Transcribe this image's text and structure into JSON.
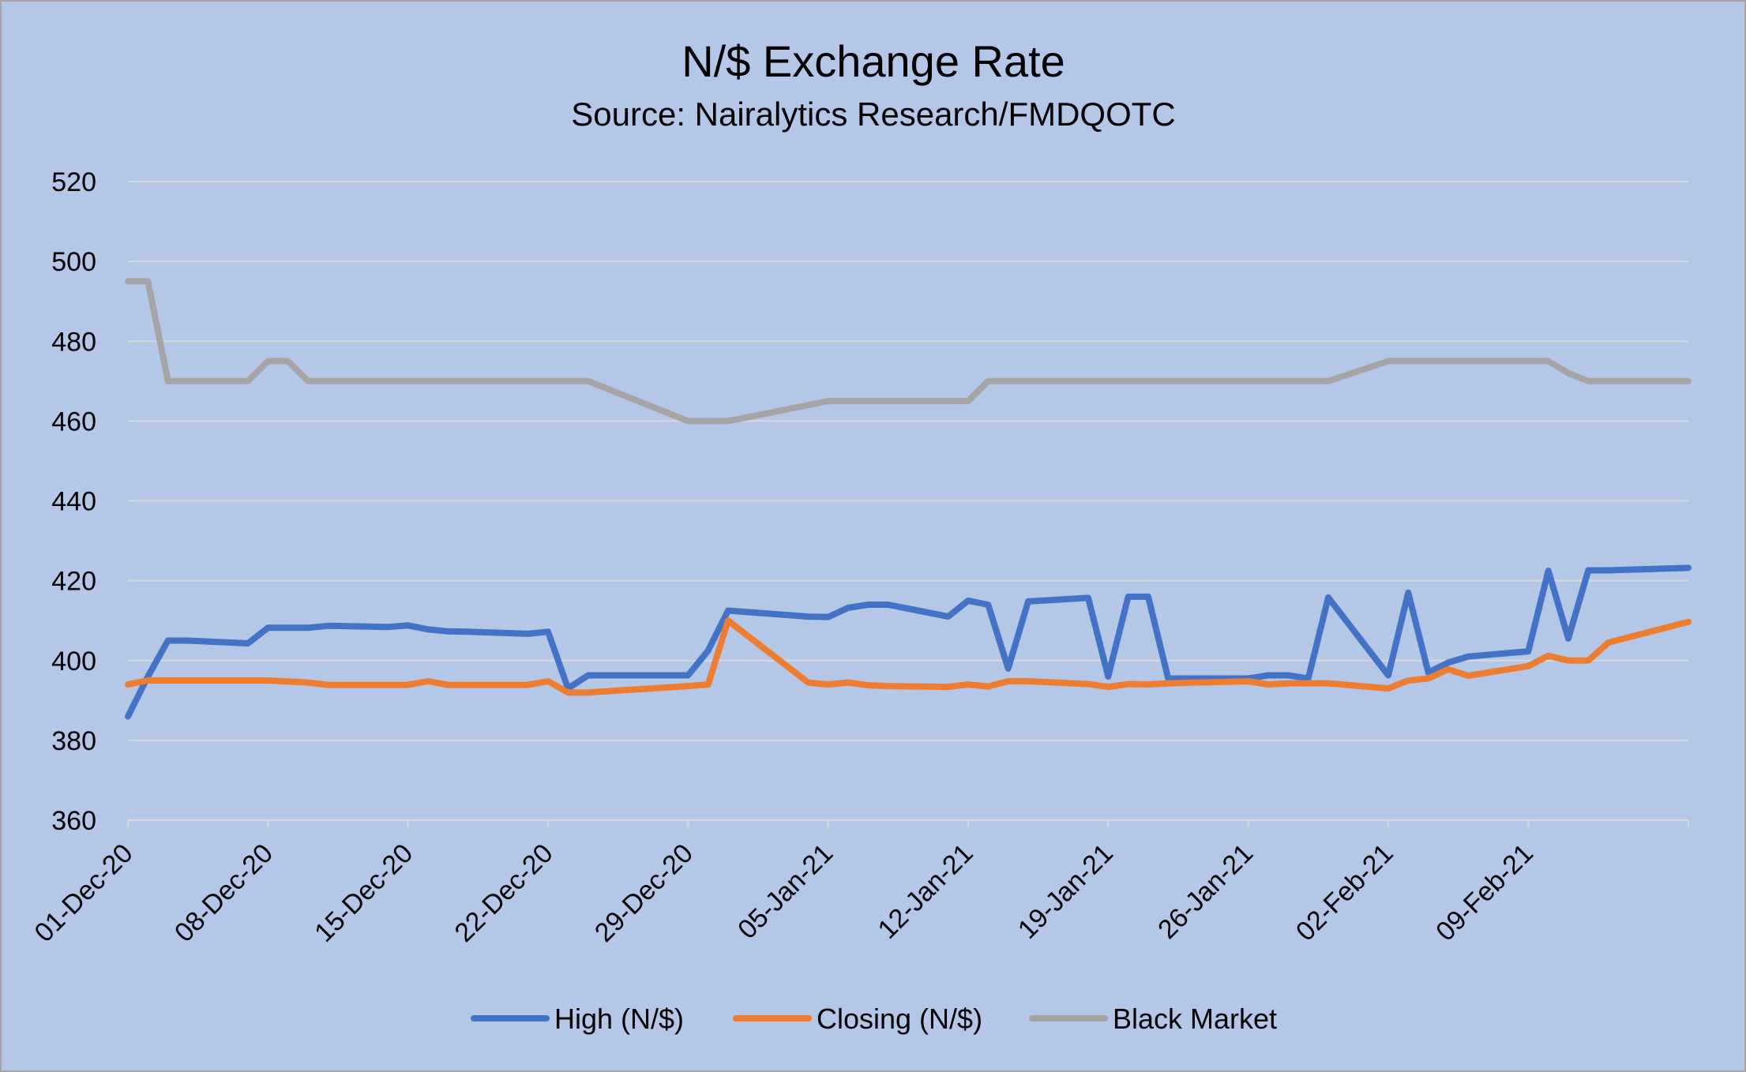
{
  "chart_data": {
    "type": "line",
    "title": "N/$ Exchange Rate",
    "subtitle": "Source: Nairalytics Research/FMDQOTC",
    "xlabel": "",
    "ylabel": "",
    "ylim": [
      360,
      520
    ],
    "yticks": [
      360,
      380,
      400,
      420,
      440,
      460,
      480,
      500,
      520
    ],
    "xlim": [
      "01-Dec-20",
      "17-Feb-21"
    ],
    "xticks": [
      "01-Dec-20",
      "08-Dec-20",
      "15-Dec-20",
      "22-Dec-20",
      "29-Dec-20",
      "05-Jan-21",
      "12-Jan-21",
      "19-Jan-21",
      "26-Jan-21",
      "02-Feb-21",
      "09-Feb-21"
    ],
    "grid": true,
    "legend_position": "bottom",
    "series": [
      {
        "name": "High (N/$)",
        "color": "#4472c4",
        "points": [
          [
            "01-Dec-20",
            386
          ],
          [
            "02-Dec-20",
            396
          ],
          [
            "03-Dec-20",
            405
          ],
          [
            "04-Dec-20",
            405
          ],
          [
            "07-Dec-20",
            404.3
          ],
          [
            "08-Dec-20",
            408.2
          ],
          [
            "09-Dec-20",
            408.2
          ],
          [
            "10-Dec-20",
            408.2
          ],
          [
            "11-Dec-20",
            408.7
          ],
          [
            "14-Dec-20",
            408.4
          ],
          [
            "15-Dec-20",
            408.8
          ],
          [
            "16-Dec-20",
            407.8
          ],
          [
            "17-Dec-20",
            407.3
          ],
          [
            "18-Dec-20",
            407.2
          ],
          [
            "21-Dec-20",
            406.7
          ],
          [
            "22-Dec-20",
            407.2
          ],
          [
            "23-Dec-20",
            393
          ],
          [
            "24-Dec-20",
            396.3
          ],
          [
            "29-Dec-20",
            396.3
          ],
          [
            "30-Dec-20",
            402.5
          ],
          [
            "31-Dec-20",
            412.5
          ],
          [
            "04-Jan-21",
            411
          ],
          [
            "05-Jan-21",
            410.9
          ],
          [
            "06-Jan-21",
            413.2
          ],
          [
            "07-Jan-21",
            414
          ],
          [
            "08-Jan-21",
            414
          ],
          [
            "11-Jan-21",
            411
          ],
          [
            "12-Jan-21",
            415
          ],
          [
            "13-Jan-21",
            414
          ],
          [
            "14-Jan-21",
            398
          ],
          [
            "15-Jan-21",
            414.8
          ],
          [
            "18-Jan-21",
            415.7
          ],
          [
            "19-Jan-21",
            396
          ],
          [
            "20-Jan-21",
            416
          ],
          [
            "21-Jan-21",
            416
          ],
          [
            "22-Jan-21",
            395.5
          ],
          [
            "26-Jan-21",
            395.5
          ],
          [
            "27-Jan-21",
            396.3
          ],
          [
            "28-Jan-21",
            396.3
          ],
          [
            "29-Jan-21",
            395.5
          ],
          [
            "30-Jan-21",
            415.8
          ],
          [
            "02-Feb-21",
            396.3
          ],
          [
            "03-Feb-21",
            417
          ],
          [
            "04-Feb-21",
            397
          ],
          [
            "05-Feb-21",
            399.5
          ],
          [
            "06-Feb-21",
            401
          ],
          [
            "09-Feb-21",
            402.3
          ],
          [
            "10-Feb-21",
            422.5
          ],
          [
            "11-Feb-21",
            405.5
          ],
          [
            "12-Feb-21",
            422.6
          ],
          [
            "13-Feb-21",
            422.6
          ],
          [
            "17-Feb-21",
            423.2
          ]
        ]
      },
      {
        "name": "Closing (N/$)",
        "color": "#ed7d31",
        "points": [
          [
            "01-Dec-20",
            394
          ],
          [
            "02-Dec-20",
            395
          ],
          [
            "08-Dec-20",
            395
          ],
          [
            "10-Dec-20",
            394.5
          ],
          [
            "11-Dec-20",
            393.9
          ],
          [
            "15-Dec-20",
            393.9
          ],
          [
            "16-Dec-20",
            394.8
          ],
          [
            "17-Dec-20",
            393.9
          ],
          [
            "21-Dec-20",
            393.9
          ],
          [
            "22-Dec-20",
            394.8
          ],
          [
            "23-Dec-20",
            392
          ],
          [
            "24-Dec-20",
            392
          ],
          [
            "29-Dec-20",
            393.6
          ],
          [
            "30-Dec-20",
            394
          ],
          [
            "31-Dec-20",
            410
          ],
          [
            "04-Jan-21",
            394.5
          ],
          [
            "05-Jan-21",
            394
          ],
          [
            "06-Jan-21",
            394.5
          ],
          [
            "07-Jan-21",
            393.8
          ],
          [
            "08-Jan-21",
            393.6
          ],
          [
            "11-Jan-21",
            393.4
          ],
          [
            "12-Jan-21",
            394
          ],
          [
            "13-Jan-21",
            393.5
          ],
          [
            "14-Jan-21",
            394.8
          ],
          [
            "15-Jan-21",
            394.8
          ],
          [
            "18-Jan-21",
            394.1
          ],
          [
            "19-Jan-21",
            393.4
          ],
          [
            "20-Jan-21",
            394.1
          ],
          [
            "21-Jan-21",
            394
          ],
          [
            "22-Jan-21",
            394.3
          ],
          [
            "26-Jan-21",
            394.8
          ],
          [
            "27-Jan-21",
            394
          ],
          [
            "28-Jan-21",
            394.3
          ],
          [
            "30-Jan-21",
            394.3
          ],
          [
            "02-Feb-21",
            393
          ],
          [
            "03-Feb-21",
            395
          ],
          [
            "04-Feb-21",
            395.5
          ],
          [
            "05-Feb-21",
            397.8
          ],
          [
            "06-Feb-21",
            396.2
          ],
          [
            "09-Feb-21",
            398.6
          ],
          [
            "10-Feb-21",
            401.2
          ],
          [
            "11-Feb-21",
            400
          ],
          [
            "12-Feb-21",
            400
          ],
          [
            "13-Feb-21",
            404.5
          ],
          [
            "17-Feb-21",
            409.7
          ]
        ]
      },
      {
        "name": "Black Market",
        "color": "#a5a5a5",
        "points": [
          [
            "01-Dec-20",
            495
          ],
          [
            "02-Dec-20",
            495
          ],
          [
            "03-Dec-20",
            470
          ],
          [
            "07-Dec-20",
            470
          ],
          [
            "08-Dec-20",
            475
          ],
          [
            "09-Dec-20",
            475
          ],
          [
            "10-Dec-20",
            470
          ],
          [
            "24-Dec-20",
            470
          ],
          [
            "29-Dec-20",
            460
          ],
          [
            "31-Dec-20",
            460
          ],
          [
            "05-Jan-21",
            465
          ],
          [
            "12-Jan-21",
            465
          ],
          [
            "13-Jan-21",
            470
          ],
          [
            "30-Jan-21",
            470
          ],
          [
            "02-Feb-21",
            475
          ],
          [
            "10-Feb-21",
            475
          ],
          [
            "11-Feb-21",
            472
          ],
          [
            "12-Feb-21",
            470
          ],
          [
            "17-Feb-21",
            470
          ]
        ]
      }
    ]
  }
}
